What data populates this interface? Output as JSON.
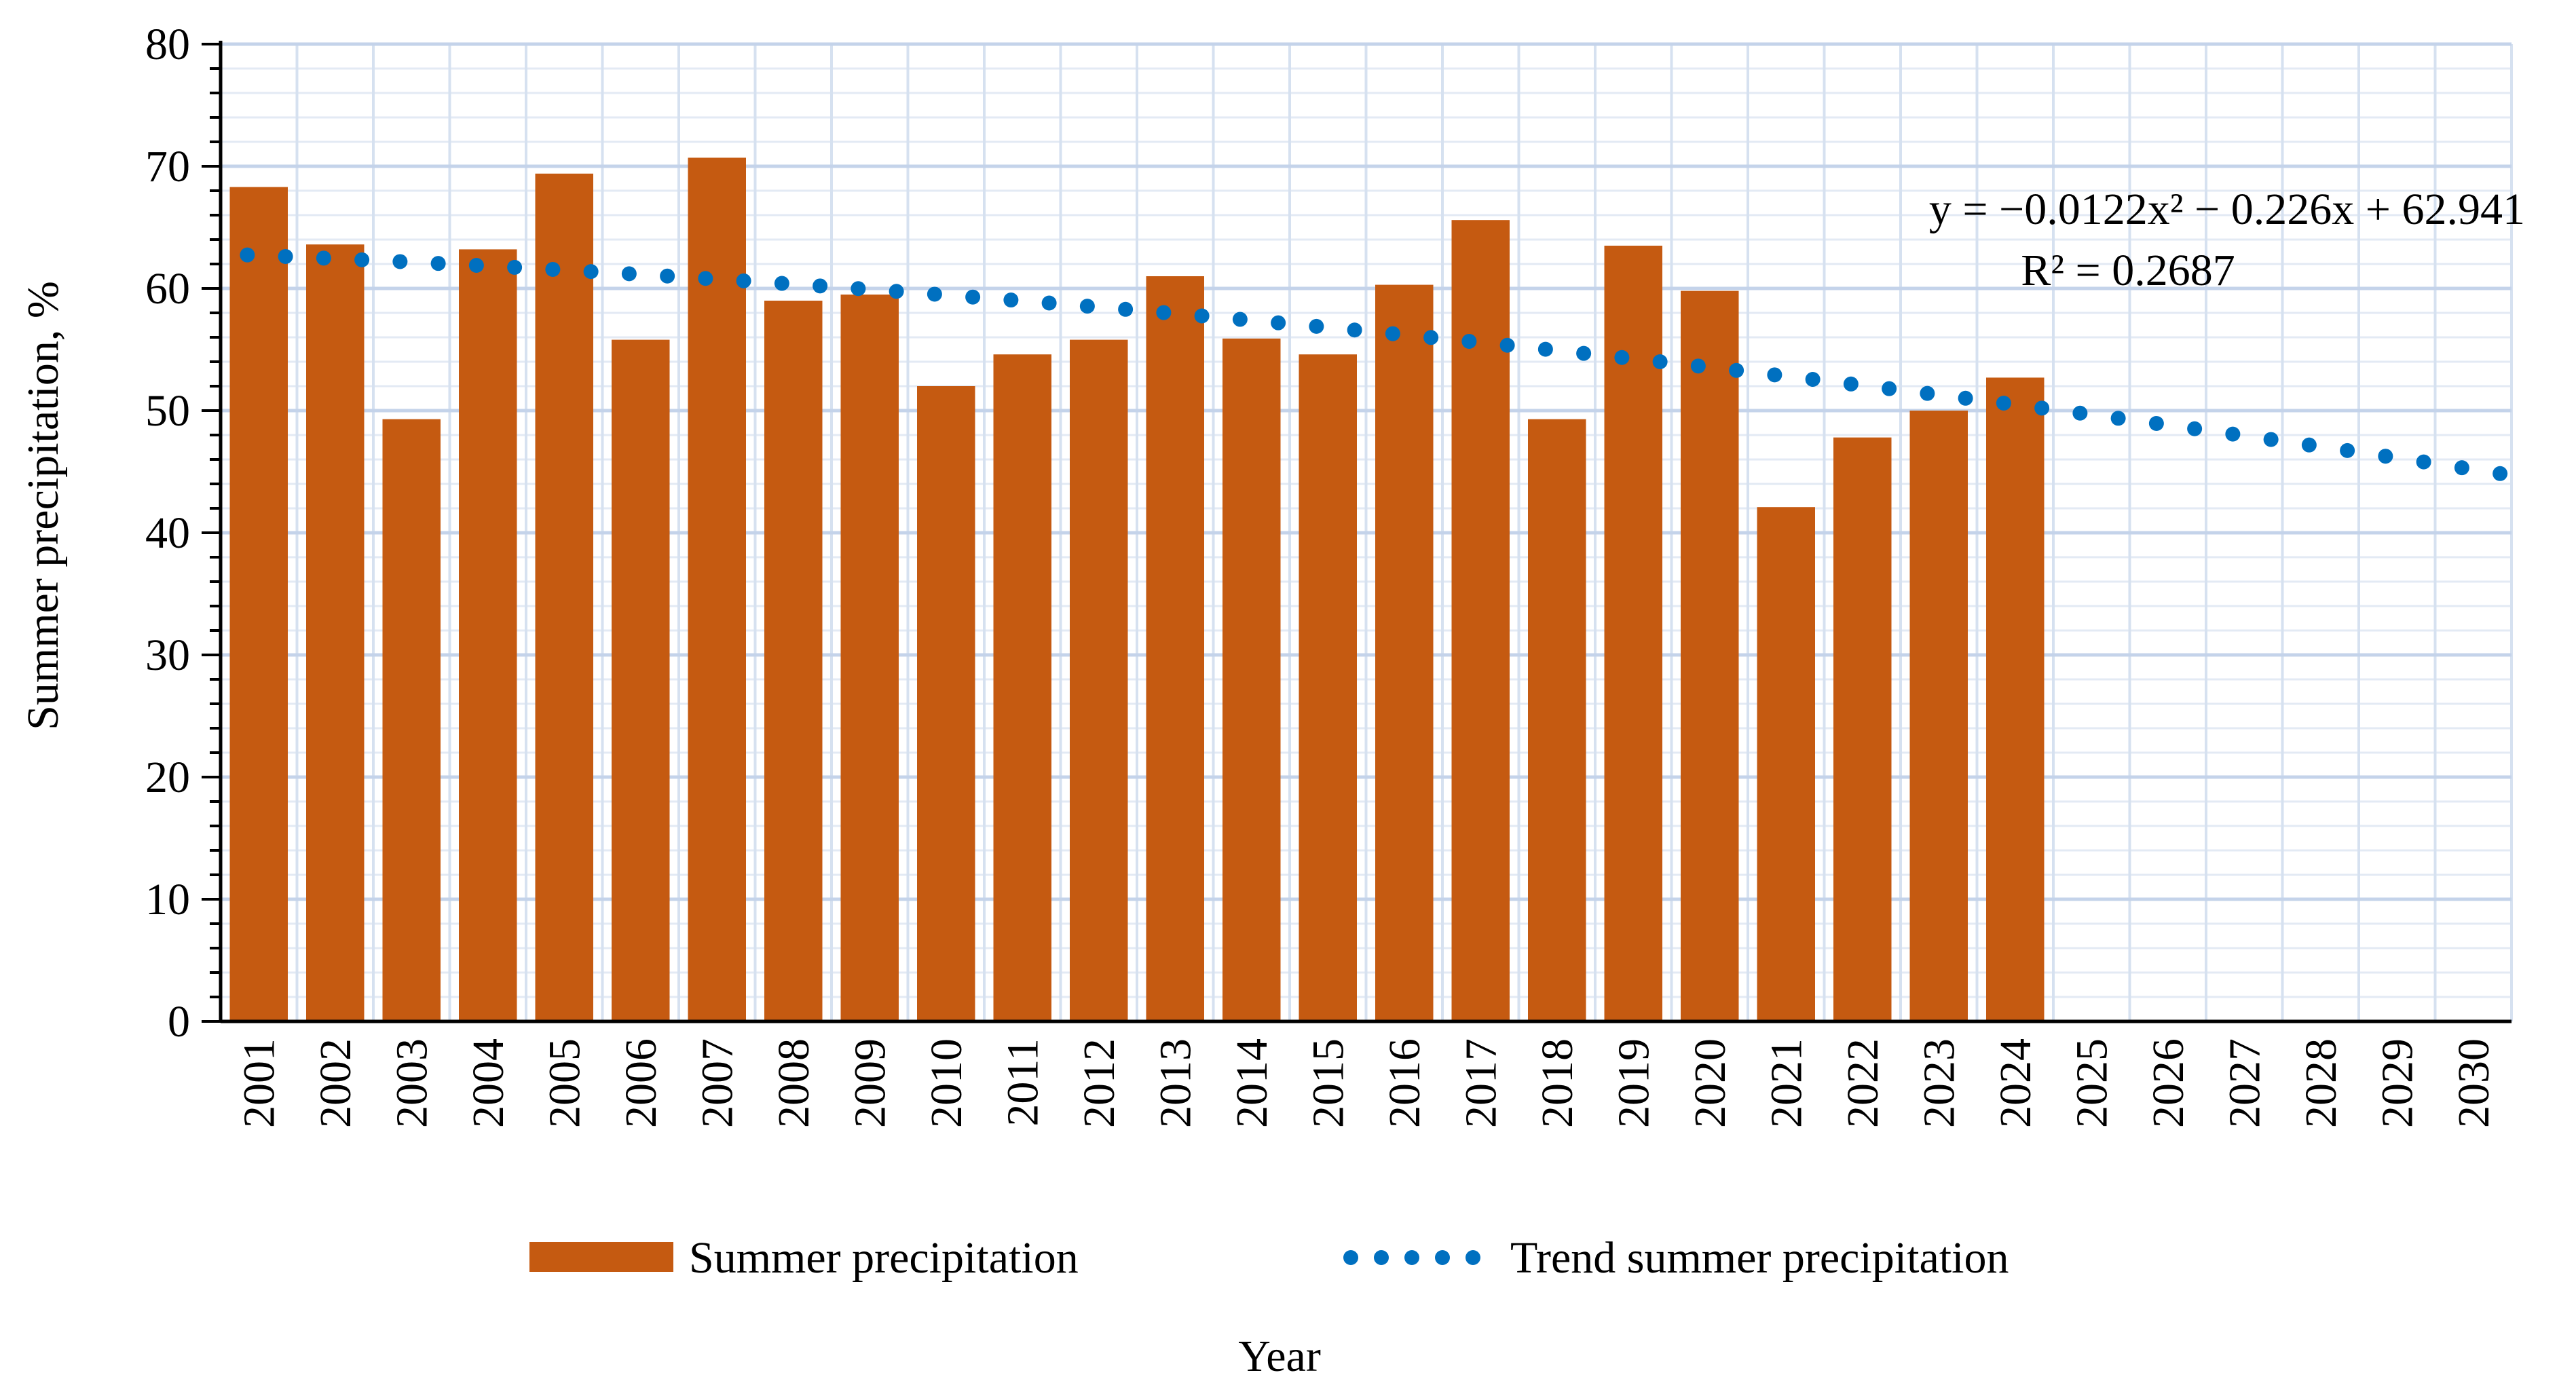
{
  "chart_data": {
    "type": "bar",
    "title": "",
    "xlabel": "Year",
    "ylabel": "Summer precipitation, %",
    "ylim": [
      0,
      80
    ],
    "yticks": [
      0,
      10,
      20,
      30,
      40,
      50,
      60,
      70,
      80
    ],
    "grid": true,
    "categories": [
      "2001",
      "2002",
      "2003",
      "2004",
      "2005",
      "2006",
      "2007",
      "2008",
      "2009",
      "2010",
      "2011",
      "2012",
      "2013",
      "2014",
      "2015",
      "2016",
      "2017",
      "2018",
      "2019",
      "2020",
      "2021",
      "2022",
      "2023",
      "2024",
      "2025",
      "2026",
      "2027",
      "2028",
      "2029",
      "2030"
    ],
    "series": [
      {
        "name": "Summer precipitation",
        "kind": "bar",
        "color": "#C55A11",
        "values": [
          68.3,
          63.6,
          49.3,
          63.2,
          69.4,
          55.8,
          70.7,
          59.0,
          59.5,
          52.0,
          54.6,
          55.8,
          61.0,
          55.9,
          54.6,
          60.3,
          65.6,
          49.3,
          63.5,
          59.8,
          42.1,
          47.8,
          50.0,
          52.7,
          null,
          null,
          null,
          null,
          null,
          null
        ]
      },
      {
        "name": "Trend summer precipitation",
        "kind": "dotted-line",
        "color": "#0070C0",
        "coefficients": {
          "a": -0.0122,
          "b": -0.226,
          "c": 62.941
        },
        "x_start": 1,
        "x_end": 31
      }
    ],
    "legend": {
      "position": "bottom",
      "items": [
        "Summer precipitation",
        "Trend summer precipitation"
      ]
    },
    "annotation": {
      "equation": "y = −0.0122x² − 0.226x + 62.941",
      "r_squared": "R² = 0.2687",
      "position": "top-right"
    }
  }
}
